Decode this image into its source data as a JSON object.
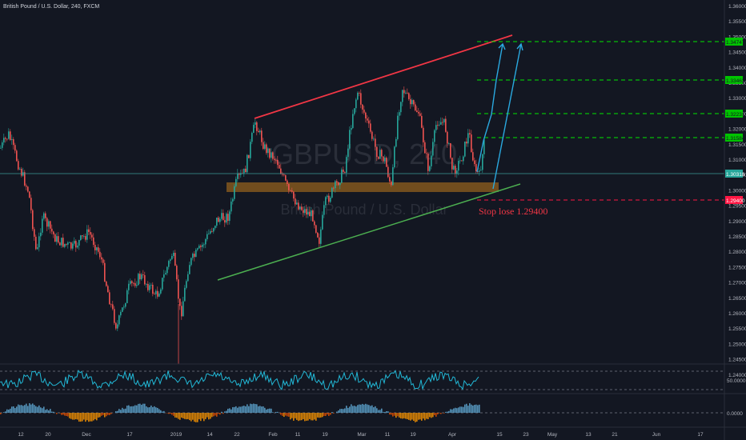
{
  "header": {
    "title": "British Pound / U.S. Dollar, 240, FXCM",
    "watermark": "GBPUSD, 240",
    "watermark_sub": "British Pound / U.S. Dollar"
  },
  "price_axis": {
    "ticks": [
      "1.36000",
      "1.35500",
      "1.35000",
      "1.34500",
      "1.34000",
      "1.33500",
      "1.33000",
      "1.32500",
      "1.32000",
      "1.31500",
      "1.31000",
      "1.30500",
      "1.30000",
      "1.29500",
      "1.29000",
      "1.28500",
      "1.28000",
      "1.27500",
      "1.27000",
      "1.26500",
      "1.26000",
      "1.25500",
      "1.25000",
      "1.24500",
      "1.24000"
    ],
    "current_price": "1.30318",
    "target_labels": [
      "1.34747",
      "1.33462",
      "1.32231",
      "1.31584"
    ],
    "stop_label": "1.29400"
  },
  "annotations": {
    "stop_loss_text": "Stop lose 1.29400"
  },
  "rsi_axis": {
    "tick": "50.0000"
  },
  "osc_axis": {
    "tick": "0.0000"
  },
  "time_axis": {
    "labels": [
      "12",
      "20",
      "Dec",
      "17",
      "2019",
      "14",
      "22",
      "Feb",
      "11",
      "19",
      "Mar",
      "11",
      "19",
      "Apr",
      "15",
      "23",
      "May",
      "13",
      "21",
      "Jun",
      "17"
    ]
  },
  "colors": {
    "background": "#131722",
    "up_candle": "#26a69a",
    "down_candle": "#ef5350",
    "resistance": "#f23645",
    "support": "#4caf50",
    "target_line": "#00e600",
    "stop_line": "#ff1744",
    "arrow": "#2aa9e0",
    "rsi_line": "#22b8d6",
    "zone": "#c07a1c"
  }
}
